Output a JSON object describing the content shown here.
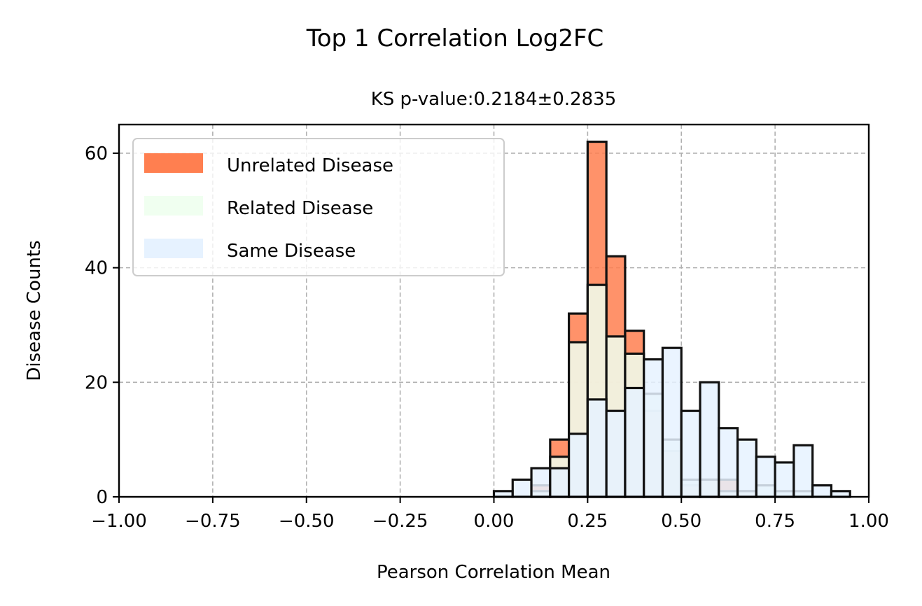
{
  "chart_data": {
    "type": "bar",
    "title": "Top 1 Correlation Log2FC",
    "subtitle": "KS p-value:0.2184±0.2835",
    "xlabel": "Pearson Correlation Mean",
    "ylabel": "Disease Counts",
    "xlim": [
      -1.0,
      1.0
    ],
    "ylim": [
      0,
      65
    ],
    "x_ticks": [
      "−1.00",
      "−0.75",
      "−0.50",
      "−0.25",
      "0.00",
      "0.25",
      "0.50",
      "0.75",
      "1.00"
    ],
    "x_tick_values": [
      -1.0,
      -0.75,
      -0.5,
      -0.25,
      0.0,
      0.25,
      0.5,
      0.75,
      1.0
    ],
    "y_ticks": [
      "0",
      "20",
      "40",
      "60"
    ],
    "y_tick_values": [
      0,
      20,
      40,
      60
    ],
    "grid": true,
    "legend_position": "top-left",
    "bin_edges": [
      0.0,
      0.05,
      0.1,
      0.15,
      0.2,
      0.25,
      0.3,
      0.35,
      0.4,
      0.45,
      0.5,
      0.55,
      0.6,
      0.65,
      0.7,
      0.75,
      0.8,
      0.85,
      0.9,
      0.95
    ],
    "series": [
      {
        "name": "Unrelated Disease",
        "color": "#ff7f50",
        "values": [
          0,
          0,
          2,
          10,
          32,
          62,
          42,
          29,
          15,
          8,
          2,
          3,
          3,
          1,
          0,
          0,
          0,
          0,
          0
        ]
      },
      {
        "name": "Related Disease",
        "color": "#f0fff0",
        "values": [
          0,
          0,
          1,
          7,
          27,
          37,
          28,
          25,
          18,
          10,
          3,
          3,
          1,
          1,
          2,
          1,
          1,
          0,
          0
        ]
      },
      {
        "name": "Same Disease",
        "color": "#e6f2ff",
        "values": [
          1,
          3,
          5,
          5,
          11,
          17,
          15,
          19,
          24,
          26,
          15,
          20,
          12,
          10,
          7,
          6,
          9,
          2,
          1
        ]
      }
    ]
  }
}
